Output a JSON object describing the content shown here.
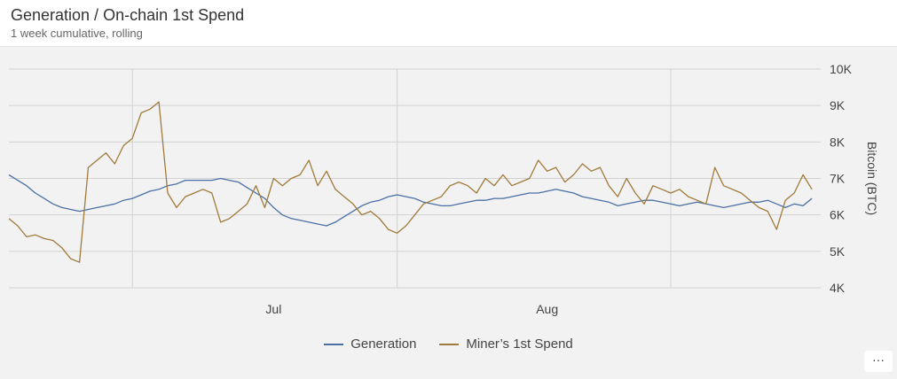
{
  "header": {
    "title": "Generation / On-chain 1st Spend",
    "subtitle": "1 week cumulative, rolling"
  },
  "menu": {
    "label": "···"
  },
  "colors": {
    "generation": "#4a6fa5",
    "miner_spend": "#a07a3a",
    "grid": "#d2d2d2"
  },
  "chart_data": {
    "type": "line",
    "title": "Generation / On-chain 1st Spend",
    "subtitle": "1 week cumulative, rolling",
    "ylabel": "Bitcoin (BTC)",
    "ylim": [
      4000,
      10000
    ],
    "yticks": [
      4000,
      5000,
      6000,
      7000,
      8000,
      9000,
      10000
    ],
    "ytick_labels": [
      "4K",
      "5K",
      "6K",
      "7K",
      "8K",
      "9K",
      "10K"
    ],
    "x_start": "2022-06-01",
    "x_end": "2022-09-01",
    "xticks": [
      {
        "date": "2022-07-01",
        "label": "Jul"
      },
      {
        "date": "2022-08-01",
        "label": "Aug"
      }
    ],
    "x_gridlines": [
      "2022-06-15",
      "2022-07-15",
      "2022-08-15"
    ],
    "legend_position": "bottom-center",
    "series": [
      {
        "name": "Generation",
        "points": [
          [
            "2022-06-01",
            7100
          ],
          [
            "2022-06-02",
            6950
          ],
          [
            "2022-06-03",
            6800
          ],
          [
            "2022-06-04",
            6600
          ],
          [
            "2022-06-05",
            6450
          ],
          [
            "2022-06-06",
            6300
          ],
          [
            "2022-06-07",
            6200
          ],
          [
            "2022-06-08",
            6150
          ],
          [
            "2022-06-09",
            6100
          ],
          [
            "2022-06-10",
            6150
          ],
          [
            "2022-06-11",
            6200
          ],
          [
            "2022-06-12",
            6250
          ],
          [
            "2022-06-13",
            6300
          ],
          [
            "2022-06-14",
            6400
          ],
          [
            "2022-06-15",
            6450
          ],
          [
            "2022-06-16",
            6550
          ],
          [
            "2022-06-17",
            6650
          ],
          [
            "2022-06-18",
            6700
          ],
          [
            "2022-06-19",
            6800
          ],
          [
            "2022-06-20",
            6850
          ],
          [
            "2022-06-21",
            6950
          ],
          [
            "2022-06-22",
            6950
          ],
          [
            "2022-06-23",
            6950
          ],
          [
            "2022-06-24",
            6950
          ],
          [
            "2022-06-25",
            7000
          ],
          [
            "2022-06-26",
            6950
          ],
          [
            "2022-06-27",
            6900
          ],
          [
            "2022-06-28",
            6750
          ],
          [
            "2022-06-29",
            6600
          ],
          [
            "2022-06-30",
            6450
          ],
          [
            "2022-07-01",
            6200
          ],
          [
            "2022-07-02",
            6000
          ],
          [
            "2022-07-03",
            5900
          ],
          [
            "2022-07-04",
            5850
          ],
          [
            "2022-07-05",
            5800
          ],
          [
            "2022-07-06",
            5750
          ],
          [
            "2022-07-07",
            5700
          ],
          [
            "2022-07-08",
            5800
          ],
          [
            "2022-07-09",
            5950
          ],
          [
            "2022-07-10",
            6100
          ],
          [
            "2022-07-11",
            6250
          ],
          [
            "2022-07-12",
            6350
          ],
          [
            "2022-07-13",
            6400
          ],
          [
            "2022-07-14",
            6500
          ],
          [
            "2022-07-15",
            6550
          ],
          [
            "2022-07-16",
            6500
          ],
          [
            "2022-07-17",
            6450
          ],
          [
            "2022-07-18",
            6350
          ],
          [
            "2022-07-19",
            6300
          ],
          [
            "2022-07-20",
            6250
          ],
          [
            "2022-07-21",
            6250
          ],
          [
            "2022-07-22",
            6300
          ],
          [
            "2022-07-23",
            6350
          ],
          [
            "2022-07-24",
            6400
          ],
          [
            "2022-07-25",
            6400
          ],
          [
            "2022-07-26",
            6450
          ],
          [
            "2022-07-27",
            6450
          ],
          [
            "2022-07-28",
            6500
          ],
          [
            "2022-07-29",
            6550
          ],
          [
            "2022-07-30",
            6600
          ],
          [
            "2022-07-31",
            6600
          ],
          [
            "2022-08-01",
            6650
          ],
          [
            "2022-08-02",
            6700
          ],
          [
            "2022-08-03",
            6650
          ],
          [
            "2022-08-04",
            6600
          ],
          [
            "2022-08-05",
            6500
          ],
          [
            "2022-08-06",
            6450
          ],
          [
            "2022-08-07",
            6400
          ],
          [
            "2022-08-08",
            6350
          ],
          [
            "2022-08-09",
            6250
          ],
          [
            "2022-08-10",
            6300
          ],
          [
            "2022-08-11",
            6350
          ],
          [
            "2022-08-12",
            6400
          ],
          [
            "2022-08-13",
            6400
          ],
          [
            "2022-08-14",
            6350
          ],
          [
            "2022-08-15",
            6300
          ],
          [
            "2022-08-16",
            6250
          ],
          [
            "2022-08-17",
            6300
          ],
          [
            "2022-08-18",
            6350
          ],
          [
            "2022-08-19",
            6300
          ],
          [
            "2022-08-20",
            6250
          ],
          [
            "2022-08-21",
            6200
          ],
          [
            "2022-08-22",
            6250
          ],
          [
            "2022-08-23",
            6300
          ],
          [
            "2022-08-24",
            6350
          ],
          [
            "2022-08-25",
            6350
          ],
          [
            "2022-08-26",
            6400
          ],
          [
            "2022-08-27",
            6300
          ],
          [
            "2022-08-28",
            6200
          ],
          [
            "2022-08-29",
            6300
          ],
          [
            "2022-08-30",
            6250
          ],
          [
            "2022-08-31",
            6450
          ]
        ]
      },
      {
        "name": "Miner’s 1st Spend",
        "points": [
          [
            "2022-06-01",
            5900
          ],
          [
            "2022-06-02",
            5700
          ],
          [
            "2022-06-03",
            5400
          ],
          [
            "2022-06-04",
            5450
          ],
          [
            "2022-06-05",
            5350
          ],
          [
            "2022-06-06",
            5300
          ],
          [
            "2022-06-07",
            5100
          ],
          [
            "2022-06-08",
            4800
          ],
          [
            "2022-06-09",
            4700
          ],
          [
            "2022-06-10",
            7300
          ],
          [
            "2022-06-11",
            7500
          ],
          [
            "2022-06-12",
            7700
          ],
          [
            "2022-06-13",
            7400
          ],
          [
            "2022-06-14",
            7900
          ],
          [
            "2022-06-15",
            8100
          ],
          [
            "2022-06-16",
            8800
          ],
          [
            "2022-06-17",
            8900
          ],
          [
            "2022-06-18",
            9100
          ],
          [
            "2022-06-19",
            6600
          ],
          [
            "2022-06-20",
            6200
          ],
          [
            "2022-06-21",
            6500
          ],
          [
            "2022-06-22",
            6600
          ],
          [
            "2022-06-23",
            6700
          ],
          [
            "2022-06-24",
            6600
          ],
          [
            "2022-06-25",
            5800
          ],
          [
            "2022-06-26",
            5900
          ],
          [
            "2022-06-27",
            6100
          ],
          [
            "2022-06-28",
            6300
          ],
          [
            "2022-06-29",
            6800
          ],
          [
            "2022-06-30",
            6200
          ],
          [
            "2022-07-01",
            7000
          ],
          [
            "2022-07-02",
            6800
          ],
          [
            "2022-07-03",
            7000
          ],
          [
            "2022-07-04",
            7100
          ],
          [
            "2022-07-05",
            7500
          ],
          [
            "2022-07-06",
            6800
          ],
          [
            "2022-07-07",
            7200
          ],
          [
            "2022-07-08",
            6700
          ],
          [
            "2022-07-09",
            6500
          ],
          [
            "2022-07-10",
            6300
          ],
          [
            "2022-07-11",
            6000
          ],
          [
            "2022-07-12",
            6100
          ],
          [
            "2022-07-13",
            5900
          ],
          [
            "2022-07-14",
            5600
          ],
          [
            "2022-07-15",
            5500
          ],
          [
            "2022-07-16",
            5700
          ],
          [
            "2022-07-17",
            6000
          ],
          [
            "2022-07-18",
            6300
          ],
          [
            "2022-07-19",
            6400
          ],
          [
            "2022-07-20",
            6500
          ],
          [
            "2022-07-21",
            6800
          ],
          [
            "2022-07-22",
            6900
          ],
          [
            "2022-07-23",
            6800
          ],
          [
            "2022-07-24",
            6600
          ],
          [
            "2022-07-25",
            7000
          ],
          [
            "2022-07-26",
            6800
          ],
          [
            "2022-07-27",
            7100
          ],
          [
            "2022-07-28",
            6800
          ],
          [
            "2022-07-29",
            6900
          ],
          [
            "2022-07-30",
            7000
          ],
          [
            "2022-07-31",
            7500
          ],
          [
            "2022-08-01",
            7200
          ],
          [
            "2022-08-02",
            7300
          ],
          [
            "2022-08-03",
            6900
          ],
          [
            "2022-08-04",
            7100
          ],
          [
            "2022-08-05",
            7400
          ],
          [
            "2022-08-06",
            7200
          ],
          [
            "2022-08-07",
            7300
          ],
          [
            "2022-08-08",
            6800
          ],
          [
            "2022-08-09",
            6500
          ],
          [
            "2022-08-10",
            7000
          ],
          [
            "2022-08-11",
            6600
          ],
          [
            "2022-08-12",
            6300
          ],
          [
            "2022-08-13",
            6800
          ],
          [
            "2022-08-14",
            6700
          ],
          [
            "2022-08-15",
            6600
          ],
          [
            "2022-08-16",
            6700
          ],
          [
            "2022-08-17",
            6500
          ],
          [
            "2022-08-18",
            6400
          ],
          [
            "2022-08-19",
            6300
          ],
          [
            "2022-08-20",
            7300
          ],
          [
            "2022-08-21",
            6800
          ],
          [
            "2022-08-22",
            6700
          ],
          [
            "2022-08-23",
            6600
          ],
          [
            "2022-08-24",
            6400
          ],
          [
            "2022-08-25",
            6200
          ],
          [
            "2022-08-26",
            6100
          ],
          [
            "2022-08-27",
            5600
          ],
          [
            "2022-08-28",
            6400
          ],
          [
            "2022-08-29",
            6600
          ],
          [
            "2022-08-30",
            7100
          ],
          [
            "2022-08-31",
            6700
          ]
        ]
      }
    ]
  }
}
